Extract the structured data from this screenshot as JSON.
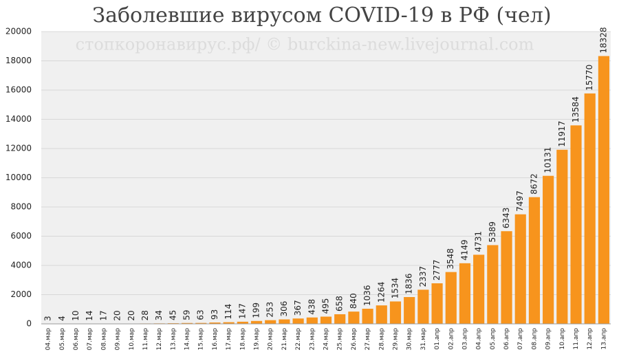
{
  "chart_data": {
    "type": "bar",
    "title": "Заболевшие вирусом COVID-19 в РФ (чел)",
    "annotation": "стопкоронавирус.рф/ © burckina-new.livejournal.com",
    "categories": [
      "04.мар",
      "05.мар",
      "06.мар",
      "07.мар",
      "08.мар",
      "09.мар",
      "10.мар",
      "11.мар",
      "12.мар",
      "13.мар",
      "14.мар",
      "15.мар",
      "16.мар",
      "17.мар",
      "18.мар",
      "19.мар",
      "20.мар",
      "21.мар",
      "22.мар",
      "23.мар",
      "24.мар",
      "25.мар",
      "26.мар",
      "27.мар",
      "28.мар",
      "29.мар",
      "30.мар",
      "31.мар",
      "01.апр",
      "02.апр",
      "03.апр",
      "04.апр",
      "05.апр",
      "06.апр",
      "07.апр",
      "08.апр",
      "09.апр",
      "10.апр",
      "11.апр",
      "12.апр",
      "13.апр"
    ],
    "values": [
      3,
      4,
      10,
      14,
      17,
      20,
      20,
      28,
      34,
      45,
      59,
      63,
      93,
      114,
      147,
      199,
      253,
      306,
      367,
      438,
      495,
      658,
      840,
      1036,
      1264,
      1534,
      1836,
      2337,
      2777,
      3548,
      4149,
      4731,
      5389,
      6343,
      7497,
      8672,
      10131,
      11917,
      13584,
      15770,
      18328
    ],
    "color": "#f7941d",
    "ylim": [
      0,
      20000
    ],
    "yticks": [
      0,
      2000,
      4000,
      6000,
      8000,
      10000,
      12000,
      14000,
      16000,
      18000,
      20000
    ],
    "grid": true
  }
}
